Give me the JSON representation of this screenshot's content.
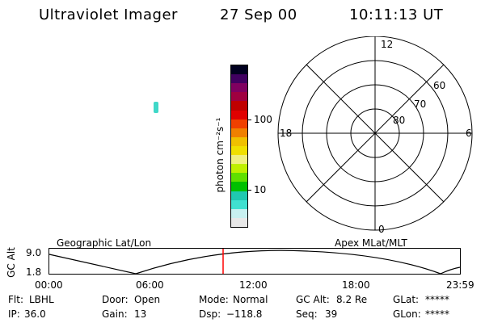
{
  "header": {
    "instrument": "Ultraviolet Imager",
    "date": "27 Sep 00",
    "time": "10:11:13 UT"
  },
  "colorbar": {
    "unit_label": "photon cm⁻²s⁻¹",
    "tick_100": "100",
    "tick_10": "10",
    "colors": [
      "#e8e8e8",
      "#c8f0f0",
      "#40e0d0",
      "#20c8b0",
      "#00c000",
      "#60e000",
      "#c0f000",
      "#f0f080",
      "#f0e000",
      "#f0c000",
      "#f08000",
      "#f04000",
      "#e00000",
      "#c00000",
      "#a00040",
      "#800060",
      "#400060",
      "#000020"
    ]
  },
  "polar": {
    "label_12": "12",
    "label_18": "18",
    "label_6": "6",
    "label_0": "0",
    "lat_60": "60",
    "lat_70": "70",
    "lat_80": "80"
  },
  "timeline": {
    "left_label": "Geographic Lat/Lon",
    "right_label": "Apex MLat/MLT",
    "axis_label": "GC Alt",
    "y_top": "9.0",
    "y_bottom": "1.8",
    "x_ticks": [
      "00:00",
      "06:00",
      "12:00",
      "18:00",
      "23:59"
    ],
    "marker_color": "#ff0000"
  },
  "footer": {
    "flt_label": "Flt:",
    "flt_value": "LBHL",
    "ip_label": "IP:",
    "ip_value": "36.0",
    "door_label": "Door:",
    "door_value": "Open",
    "gain_label": "Gain:",
    "gain_value": "13",
    "mode_label": "Mode:",
    "mode_value": "Normal",
    "dsp_label": "Dsp:",
    "dsp_value": "−118.8",
    "gcalt_label": "GC Alt:",
    "gcalt_value": "8.2 Re",
    "seq_label": "Seq:",
    "seq_value": "39",
    "glat_label": "GLat:",
    "glat_value": "*****",
    "glon_label": "GLon:",
    "glon_value": "*****"
  }
}
